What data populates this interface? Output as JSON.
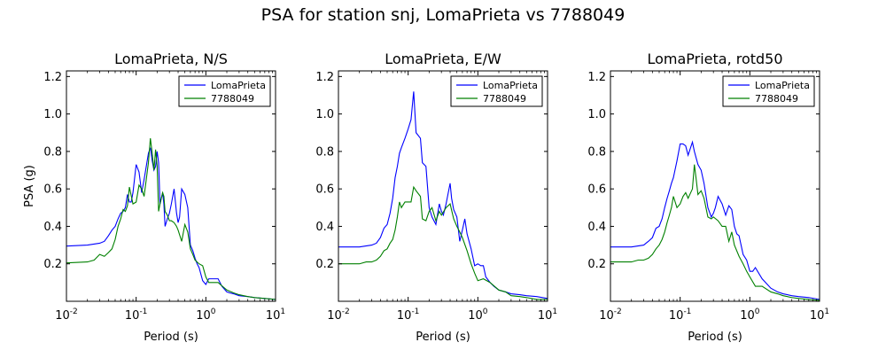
{
  "figure": {
    "suptitle": "PSA for station snj, LomaPrieta vs 7788049"
  },
  "colors": {
    "series_1": "#0000ff",
    "series_2": "#008000",
    "axes": "#000000",
    "background": "#ffffff"
  },
  "chart_data": [
    {
      "type": "line",
      "title": "LomaPrieta, N/S",
      "xlabel": "Period (s)",
      "ylabel": "PSA (g)",
      "xscale": "log",
      "xlim": [
        0.01,
        10
      ],
      "ylim": [
        0,
        1.23
      ],
      "x_ticks": [
        0.01,
        0.1,
        1,
        10
      ],
      "x_tick_labels": [
        [
          "10",
          "-2"
        ],
        [
          "10",
          "-1"
        ],
        [
          "10",
          "0"
        ],
        [
          "10",
          "1"
        ]
      ],
      "y_ticks": [
        0.2,
        0.4,
        0.6,
        0.8,
        1.0,
        1.2
      ],
      "y_tick_labels": [
        "0.2",
        "0.4",
        "0.6",
        "0.8",
        "1.0",
        "1.2"
      ],
      "grid": false,
      "legend_position": "top-right",
      "series": [
        {
          "name": "LomaPrieta",
          "x": [
            0.01,
            0.02,
            0.03,
            0.035,
            0.04,
            0.045,
            0.05,
            0.055,
            0.06,
            0.065,
            0.07,
            0.075,
            0.08,
            0.085,
            0.09,
            0.1,
            0.11,
            0.12,
            0.13,
            0.15,
            0.16,
            0.17,
            0.18,
            0.19,
            0.2,
            0.21,
            0.22,
            0.24,
            0.25,
            0.26,
            0.28,
            0.3,
            0.32,
            0.35,
            0.38,
            0.4,
            0.42,
            0.45,
            0.5,
            0.55,
            0.6,
            0.65,
            0.7,
            0.75,
            0.8,
            0.9,
            1.0,
            1.1,
            1.2,
            1.3,
            1.5,
            1.7,
            2.0,
            2.2,
            2.5,
            3.0,
            4.0,
            5.0,
            7.0,
            10.0
          ],
          "values": [
            0.295,
            0.3,
            0.31,
            0.32,
            0.35,
            0.38,
            0.4,
            0.44,
            0.47,
            0.48,
            0.5,
            0.57,
            0.53,
            0.53,
            0.58,
            0.73,
            0.69,
            0.58,
            0.65,
            0.79,
            0.82,
            0.75,
            0.7,
            0.72,
            0.8,
            0.74,
            0.52,
            0.58,
            0.52,
            0.4,
            0.44,
            0.47,
            0.52,
            0.6,
            0.47,
            0.42,
            0.45,
            0.6,
            0.57,
            0.5,
            0.3,
            0.27,
            0.23,
            0.2,
            0.18,
            0.11,
            0.09,
            0.12,
            0.12,
            0.12,
            0.12,
            0.08,
            0.05,
            0.045,
            0.04,
            0.03,
            0.025,
            0.02,
            0.015,
            0.01
          ]
        },
        {
          "name": "7788049",
          "x": [
            0.01,
            0.02,
            0.025,
            0.03,
            0.035,
            0.04,
            0.045,
            0.05,
            0.055,
            0.06,
            0.065,
            0.07,
            0.075,
            0.08,
            0.09,
            0.1,
            0.11,
            0.12,
            0.13,
            0.15,
            0.16,
            0.17,
            0.18,
            0.19,
            0.2,
            0.21,
            0.22,
            0.24,
            0.25,
            0.26,
            0.28,
            0.3,
            0.32,
            0.35,
            0.38,
            0.4,
            0.45,
            0.5,
            0.55,
            0.6,
            0.65,
            0.7,
            0.8,
            0.9,
            1.0,
            1.1,
            1.2,
            1.5,
            2.0,
            2.5,
            3.0,
            4.0,
            5.0,
            7.0,
            10.0
          ],
          "values": [
            0.205,
            0.21,
            0.22,
            0.25,
            0.24,
            0.26,
            0.28,
            0.33,
            0.4,
            0.44,
            0.49,
            0.48,
            0.51,
            0.61,
            0.52,
            0.53,
            0.62,
            0.6,
            0.56,
            0.74,
            0.87,
            0.79,
            0.7,
            0.81,
            0.72,
            0.48,
            0.52,
            0.58,
            0.56,
            0.48,
            0.46,
            0.43,
            0.43,
            0.42,
            0.4,
            0.38,
            0.32,
            0.41,
            0.37,
            0.28,
            0.25,
            0.22,
            0.2,
            0.19,
            0.13,
            0.1,
            0.1,
            0.1,
            0.06,
            0.045,
            0.035,
            0.025,
            0.02,
            0.015,
            0.01
          ]
        }
      ]
    },
    {
      "type": "line",
      "title": "LomaPrieta, E/W",
      "xlabel": "Period (s)",
      "ylabel": "",
      "xscale": "log",
      "xlim": [
        0.01,
        10
      ],
      "ylim": [
        0,
        1.23
      ],
      "x_ticks": [
        0.01,
        0.1,
        1,
        10
      ],
      "x_tick_labels": [
        [
          "10",
          "-2"
        ],
        [
          "10",
          "-1"
        ],
        [
          "10",
          "0"
        ],
        [
          "10",
          "1"
        ]
      ],
      "y_ticks": [
        0.2,
        0.4,
        0.6,
        0.8,
        1.0,
        1.2
      ],
      "y_tick_labels": [
        "0.2",
        "0.4",
        "0.6",
        "0.8",
        "1.0",
        "1.2"
      ],
      "grid": false,
      "legend_position": "top-right",
      "series": [
        {
          "name": "LomaPrieta",
          "x": [
            0.01,
            0.02,
            0.03,
            0.035,
            0.04,
            0.045,
            0.05,
            0.055,
            0.06,
            0.065,
            0.07,
            0.075,
            0.08,
            0.09,
            0.1,
            0.11,
            0.12,
            0.13,
            0.15,
            0.16,
            0.18,
            0.2,
            0.22,
            0.25,
            0.28,
            0.3,
            0.32,
            0.35,
            0.4,
            0.42,
            0.45,
            0.5,
            0.55,
            0.6,
            0.65,
            0.7,
            0.8,
            0.9,
            1.0,
            1.1,
            1.2,
            1.3,
            1.5,
            1.7,
            2.0,
            2.5,
            3.0,
            4.0,
            5.0,
            7.0,
            10.0
          ],
          "values": [
            0.29,
            0.29,
            0.3,
            0.31,
            0.34,
            0.39,
            0.41,
            0.47,
            0.55,
            0.66,
            0.72,
            0.79,
            0.82,
            0.87,
            0.92,
            0.97,
            1.12,
            0.9,
            0.87,
            0.74,
            0.72,
            0.5,
            0.45,
            0.41,
            0.52,
            0.48,
            0.46,
            0.52,
            0.63,
            0.55,
            0.49,
            0.45,
            0.32,
            0.38,
            0.44,
            0.36,
            0.28,
            0.19,
            0.2,
            0.19,
            0.19,
            0.13,
            0.1,
            0.08,
            0.06,
            0.05,
            0.04,
            0.035,
            0.03,
            0.025,
            0.015
          ]
        },
        {
          "name": "7788049",
          "x": [
            0.01,
            0.02,
            0.025,
            0.03,
            0.035,
            0.04,
            0.045,
            0.05,
            0.055,
            0.06,
            0.065,
            0.07,
            0.075,
            0.08,
            0.09,
            0.1,
            0.11,
            0.12,
            0.13,
            0.15,
            0.16,
            0.18,
            0.2,
            0.22,
            0.25,
            0.28,
            0.3,
            0.35,
            0.4,
            0.45,
            0.5,
            0.55,
            0.6,
            0.7,
            0.8,
            0.9,
            1.0,
            1.2,
            1.5,
            2.0,
            2.5,
            3.0,
            4.0,
            5.0,
            7.0,
            10.0
          ],
          "values": [
            0.2,
            0.2,
            0.21,
            0.21,
            0.22,
            0.24,
            0.27,
            0.28,
            0.31,
            0.33,
            0.38,
            0.45,
            0.53,
            0.5,
            0.53,
            0.53,
            0.53,
            0.61,
            0.59,
            0.56,
            0.44,
            0.43,
            0.48,
            0.5,
            0.43,
            0.48,
            0.46,
            0.5,
            0.52,
            0.44,
            0.4,
            0.37,
            0.34,
            0.27,
            0.2,
            0.15,
            0.11,
            0.12,
            0.1,
            0.06,
            0.05,
            0.03,
            0.025,
            0.02,
            0.01,
            0.01
          ]
        }
      ]
    },
    {
      "type": "line",
      "title": "LomaPrieta, rotd50",
      "xlabel": "Period (s)",
      "ylabel": "",
      "xscale": "log",
      "xlim": [
        0.01,
        10
      ],
      "ylim": [
        0,
        1.23
      ],
      "x_ticks": [
        0.01,
        0.1,
        1,
        10
      ],
      "x_tick_labels": [
        [
          "10",
          "-2"
        ],
        [
          "10",
          "-1"
        ],
        [
          "10",
          "0"
        ],
        [
          "10",
          "1"
        ]
      ],
      "y_ticks": [
        0.2,
        0.4,
        0.6,
        0.8,
        1.0,
        1.2
      ],
      "y_tick_labels": [
        "0.2",
        "0.4",
        "0.6",
        "0.8",
        "1.0",
        "1.2"
      ],
      "grid": false,
      "legend_position": "top-right",
      "series": [
        {
          "name": "LomaPrieta",
          "x": [
            0.01,
            0.02,
            0.03,
            0.035,
            0.04,
            0.045,
            0.05,
            0.055,
            0.06,
            0.065,
            0.07,
            0.075,
            0.08,
            0.09,
            0.1,
            0.11,
            0.12,
            0.13,
            0.15,
            0.16,
            0.18,
            0.2,
            0.22,
            0.25,
            0.28,
            0.3,
            0.32,
            0.35,
            0.4,
            0.45,
            0.5,
            0.55,
            0.6,
            0.65,
            0.7,
            0.8,
            0.9,
            1.0,
            1.1,
            1.2,
            1.5,
            2.0,
            2.5,
            3.0,
            4.0,
            5.0,
            7.0,
            10.0
          ],
          "values": [
            0.29,
            0.29,
            0.3,
            0.32,
            0.34,
            0.39,
            0.4,
            0.44,
            0.5,
            0.55,
            0.59,
            0.63,
            0.66,
            0.75,
            0.84,
            0.84,
            0.83,
            0.78,
            0.85,
            0.8,
            0.73,
            0.7,
            0.63,
            0.5,
            0.45,
            0.47,
            0.5,
            0.56,
            0.52,
            0.46,
            0.51,
            0.49,
            0.4,
            0.36,
            0.35,
            0.25,
            0.22,
            0.16,
            0.16,
            0.18,
            0.12,
            0.07,
            0.05,
            0.04,
            0.03,
            0.025,
            0.02,
            0.01
          ]
        },
        {
          "name": "7788049",
          "x": [
            0.01,
            0.02,
            0.025,
            0.03,
            0.035,
            0.04,
            0.045,
            0.05,
            0.055,
            0.06,
            0.065,
            0.07,
            0.075,
            0.08,
            0.09,
            0.1,
            0.11,
            0.12,
            0.13,
            0.15,
            0.16,
            0.17,
            0.18,
            0.2,
            0.22,
            0.25,
            0.28,
            0.3,
            0.35,
            0.4,
            0.45,
            0.5,
            0.55,
            0.6,
            0.7,
            0.8,
            0.9,
            1.0,
            1.2,
            1.5,
            2.0,
            2.5,
            3.0,
            4.0,
            5.0,
            7.0,
            10.0
          ],
          "values": [
            0.21,
            0.21,
            0.22,
            0.22,
            0.23,
            0.25,
            0.28,
            0.3,
            0.33,
            0.37,
            0.42,
            0.46,
            0.5,
            0.56,
            0.5,
            0.52,
            0.56,
            0.58,
            0.55,
            0.6,
            0.73,
            0.65,
            0.57,
            0.59,
            0.55,
            0.45,
            0.44,
            0.45,
            0.43,
            0.4,
            0.4,
            0.32,
            0.37,
            0.3,
            0.24,
            0.2,
            0.16,
            0.13,
            0.08,
            0.08,
            0.05,
            0.04,
            0.03,
            0.02,
            0.015,
            0.01,
            0.005
          ]
        }
      ]
    }
  ]
}
